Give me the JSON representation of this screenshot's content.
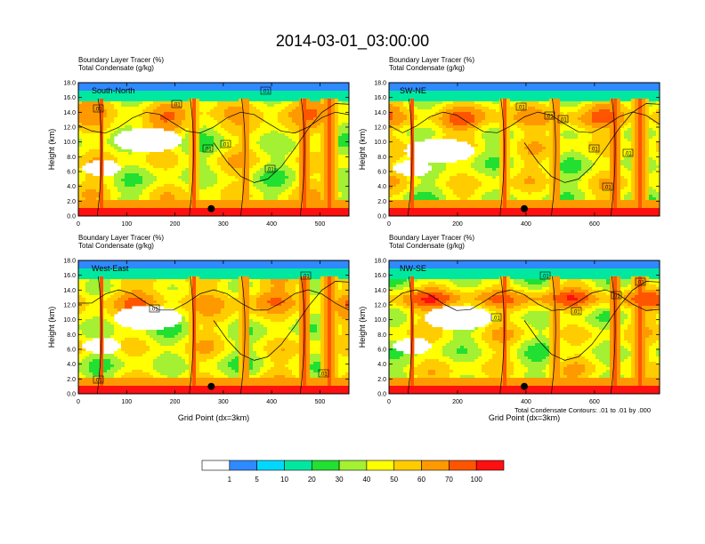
{
  "figure": {
    "title": "2014-03-01_03:00:00",
    "footnote": "Total Condensate Contours: .01 to .01 by .000"
  },
  "colorbar": {
    "labels": [
      "1",
      "5",
      "10",
      "20",
      "30",
      "40",
      "50",
      "60",
      "70",
      "100"
    ],
    "colors": [
      "#ffffff",
      "#2f89ff",
      "#00d8ff",
      "#00e8a0",
      "#21e032",
      "#a4f032",
      "#ffff00",
      "#ffcc00",
      "#ff9900",
      "#ff5500",
      "#ff1010"
    ]
  },
  "chart_data": [
    {
      "type": "heatmap",
      "name": "South-North",
      "header_lines": [
        "Boundary Layer Tracer   (%)",
        "Total Condensate   (g/kg)"
      ],
      "xlabel": "",
      "ylabel": "Height (km)",
      "xlim": [
        0,
        560
      ],
      "ylim": [
        0,
        18
      ],
      "xticks": [
        "0",
        "100",
        "200",
        "300",
        "400",
        "500"
      ],
      "yticks": [
        "0.0",
        "2.0",
        "4.0",
        "6.0",
        "8.0",
        "10.0",
        "12.0",
        "14.0",
        "16.0",
        "18.0"
      ],
      "contour_labels": [
        ".01",
        ".01",
        ".01",
        ".01",
        ".01",
        ".01"
      ],
      "marker": {
        "x": 275,
        "y": 1.0
      }
    },
    {
      "type": "heatmap",
      "name": "SW-NE",
      "header_lines": [
        "Boundary Layer Tracer   (%)",
        "Total Condensate   (g/kg)"
      ],
      "xlabel": "",
      "ylabel": "Height (km)",
      "xlim": [
        0,
        790
      ],
      "ylim": [
        0,
        18
      ],
      "xticks": [
        "0",
        "200",
        "400",
        "600"
      ],
      "yticks": [
        "0.0",
        "2.0",
        "4.0",
        "6.0",
        "8.0",
        "10.0",
        "12.0",
        "14.0",
        "16.0",
        "18.0"
      ],
      "contour_labels": [
        ".01",
        ".01",
        ".01",
        ".01",
        ".01",
        ".01"
      ],
      "marker": {
        "x": 395,
        "y": 1.0
      }
    },
    {
      "type": "heatmap",
      "name": "West-East",
      "header_lines": [
        "Boundary Layer Tracer   (%)",
        "Total Condensate   (g/kg)"
      ],
      "xlabel": "Grid Point (dx=3km)",
      "ylabel": "Height (km)",
      "xlim": [
        0,
        560
      ],
      "ylim": [
        0,
        18
      ],
      "xticks": [
        "0",
        "100",
        "200",
        "300",
        "400",
        "500"
      ],
      "yticks": [
        "0.0",
        "2.0",
        "4.0",
        "6.0",
        "8.0",
        "10.0",
        "12.0",
        "14.0",
        "16.0",
        "18.0"
      ],
      "contour_labels": [
        ".01",
        ".01",
        ".01",
        ".01"
      ],
      "marker": {
        "x": 275,
        "y": 1.0
      }
    },
    {
      "type": "heatmap",
      "name": "NW-SE",
      "header_lines": [
        "Boundary Layer Tracer   (%)",
        "Total Condensate   (g/kg)"
      ],
      "xlabel": "Grid Point (dx=3km)",
      "ylabel": "Height (km)",
      "xlim": [
        0,
        790
      ],
      "ylim": [
        0,
        18
      ],
      "xticks": [
        "0",
        "200",
        "400",
        "600"
      ],
      "yticks": [
        "0.0",
        "2.0",
        "4.0",
        "6.0",
        "8.0",
        "10.0",
        "12.0",
        "14.0",
        "16.0",
        "18.0"
      ],
      "contour_labels": [
        ".01",
        ".01",
        ".01",
        ".01",
        ".01"
      ],
      "marker": {
        "x": 395,
        "y": 1.0
      }
    }
  ]
}
